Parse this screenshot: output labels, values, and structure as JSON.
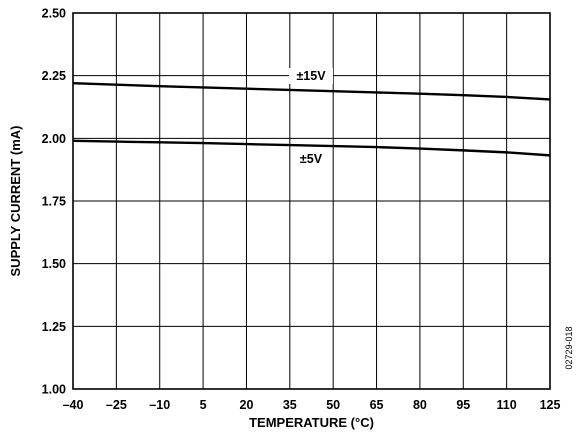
{
  "chart_data": {
    "type": "line",
    "xlabel": "TEMPERATURE (°C)",
    "ylabel": "SUPPLY CURRENT (mA)",
    "xlim": [
      -40,
      125
    ],
    "ylim": [
      1.0,
      2.5
    ],
    "x_ticks": [
      -40,
      -25,
      -10,
      5,
      20,
      35,
      50,
      65,
      80,
      95,
      110,
      125
    ],
    "x_tick_labels": [
      "–40",
      "–25",
      "–10",
      "5",
      "20",
      "35",
      "50",
      "65",
      "80",
      "95",
      "110",
      "125"
    ],
    "y_ticks": [
      1.0,
      1.25,
      1.5,
      1.75,
      2.0,
      2.25,
      2.5
    ],
    "y_tick_labels": [
      "1.00",
      "1.25",
      "1.50",
      "1.75",
      "2.00",
      "2.25",
      "2.50"
    ],
    "grid": true,
    "series": [
      {
        "name": "±15V",
        "x": [
          -40,
          -25,
          -10,
          5,
          20,
          35,
          50,
          65,
          80,
          95,
          110,
          125
        ],
        "values": [
          2.22,
          2.214,
          2.208,
          2.203,
          2.198,
          2.193,
          2.188,
          2.183,
          2.178,
          2.172,
          2.165,
          2.155
        ]
      },
      {
        "name": "±5V",
        "x": [
          -40,
          -25,
          -10,
          5,
          20,
          35,
          50,
          65,
          80,
          95,
          110,
          125
        ],
        "values": [
          1.99,
          1.987,
          1.984,
          1.981,
          1.977,
          1.973,
          1.969,
          1.965,
          1.959,
          1.952,
          1.944,
          1.932
        ]
      }
    ]
  },
  "figure_id": "02729-018",
  "style": {
    "line_color": "#000000",
    "grid_color": "#000000",
    "background": "#ffffff"
  }
}
